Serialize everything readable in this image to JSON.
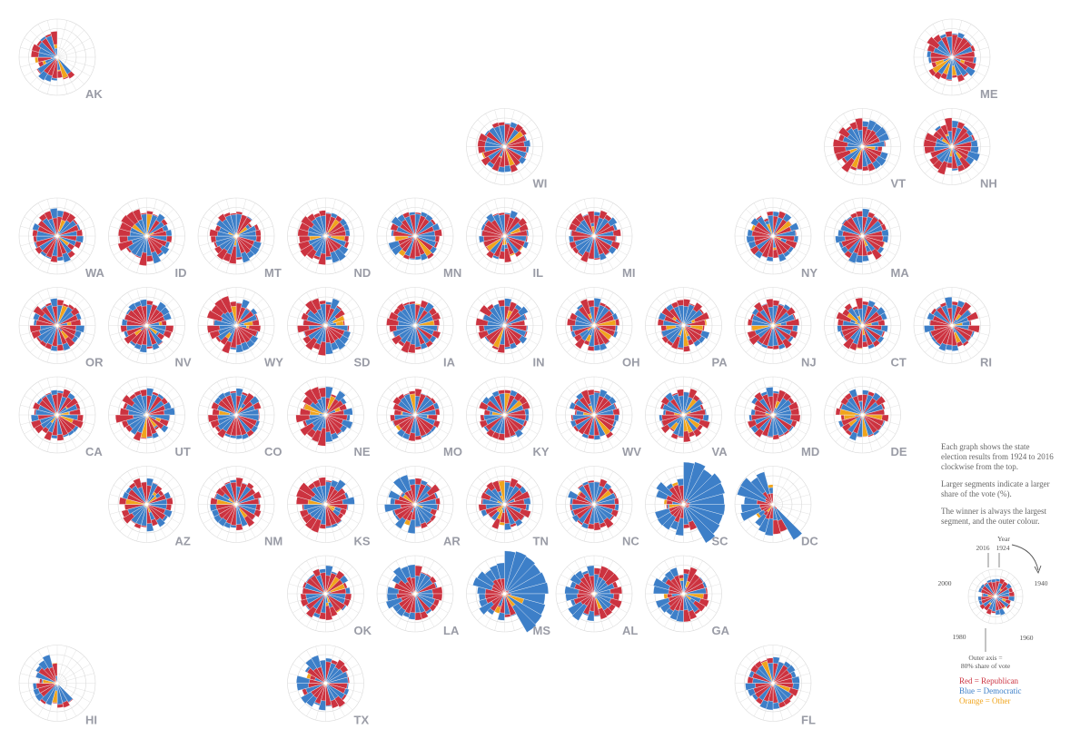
{
  "chart_data": {
    "type": "radial-bar-small-multiples",
    "years": [
      1924,
      1928,
      1932,
      1936,
      1940,
      1944,
      1948,
      1952,
      1956,
      1960,
      1964,
      1968,
      1972,
      1976,
      1980,
      1984,
      1988,
      1992,
      1996,
      2000,
      2004,
      2008,
      2012,
      2016
    ],
    "states": [
      {
        "abbr": "AK",
        "row": 0,
        "col": 0,
        "lean": 0,
        "partial": true
      },
      {
        "abbr": "ME",
        "row": 0,
        "col": 10,
        "lean": 0.2
      },
      {
        "abbr": "WI",
        "row": 1,
        "col": 5,
        "lean": 0
      },
      {
        "abbr": "VT",
        "row": 1,
        "col": 9,
        "lean": 0.25
      },
      {
        "abbr": "NH",
        "row": 1,
        "col": 10,
        "lean": 0.2
      },
      {
        "abbr": "WA",
        "row": 2,
        "col": 0,
        "lean": -0.05
      },
      {
        "abbr": "ID",
        "row": 2,
        "col": 1,
        "lean": 0.3
      },
      {
        "abbr": "MT",
        "row": 2,
        "col": 2,
        "lean": 0.2
      },
      {
        "abbr": "ND",
        "row": 2,
        "col": 3,
        "lean": 0.35
      },
      {
        "abbr": "MN",
        "row": 2,
        "col": 4,
        "lean": -0.1
      },
      {
        "abbr": "IL",
        "row": 2,
        "col": 5,
        "lean": 0
      },
      {
        "abbr": "MI",
        "row": 2,
        "col": 6,
        "lean": 0.05
      },
      {
        "abbr": "NY",
        "row": 2,
        "col": 8,
        "lean": -0.05
      },
      {
        "abbr": "MA",
        "row": 2,
        "col": 9,
        "lean": -0.1
      },
      {
        "abbr": "OR",
        "row": 3,
        "col": 0,
        "lean": 0.05
      },
      {
        "abbr": "NV",
        "row": 3,
        "col": 1,
        "lean": 0
      },
      {
        "abbr": "WY",
        "row": 3,
        "col": 2,
        "lean": 0.3
      },
      {
        "abbr": "SD",
        "row": 3,
        "col": 3,
        "lean": 0.3
      },
      {
        "abbr": "IA",
        "row": 3,
        "col": 4,
        "lean": 0.15
      },
      {
        "abbr": "IN",
        "row": 3,
        "col": 5,
        "lean": 0.2
      },
      {
        "abbr": "OH",
        "row": 3,
        "col": 6,
        "lean": 0.1
      },
      {
        "abbr": "PA",
        "row": 3,
        "col": 7,
        "lean": 0.05
      },
      {
        "abbr": "NJ",
        "row": 3,
        "col": 8,
        "lean": 0.05
      },
      {
        "abbr": "CT",
        "row": 3,
        "col": 9,
        "lean": 0.05
      },
      {
        "abbr": "RI",
        "row": 3,
        "col": 10,
        "lean": -0.15
      },
      {
        "abbr": "CA",
        "row": 4,
        "col": 0,
        "lean": 0
      },
      {
        "abbr": "UT",
        "row": 4,
        "col": 1,
        "lean": 0.35
      },
      {
        "abbr": "CO",
        "row": 4,
        "col": 2,
        "lean": 0.15
      },
      {
        "abbr": "NE",
        "row": 4,
        "col": 3,
        "lean": 0.35
      },
      {
        "abbr": "MO",
        "row": 4,
        "col": 4,
        "lean": 0
      },
      {
        "abbr": "KY",
        "row": 4,
        "col": 5,
        "lean": 0
      },
      {
        "abbr": "WV",
        "row": 4,
        "col": 6,
        "lean": -0.05
      },
      {
        "abbr": "VA",
        "row": 4,
        "col": 7,
        "lean": -0.1
      },
      {
        "abbr": "MD",
        "row": 4,
        "col": 8,
        "lean": -0.05
      },
      {
        "abbr": "DE",
        "row": 4,
        "col": 9,
        "lean": 0
      },
      {
        "abbr": "AZ",
        "row": 5,
        "col": 1,
        "lean": 0.1
      },
      {
        "abbr": "NM",
        "row": 5,
        "col": 2,
        "lean": 0
      },
      {
        "abbr": "KS",
        "row": 5,
        "col": 3,
        "lean": 0.35
      },
      {
        "abbr": "AR",
        "row": 5,
        "col": 4,
        "lean": -0.35
      },
      {
        "abbr": "TN",
        "row": 5,
        "col": 5,
        "lean": -0.05
      },
      {
        "abbr": "NC",
        "row": 5,
        "col": 6,
        "lean": -0.15
      },
      {
        "abbr": "SC",
        "row": 5,
        "col": 7,
        "lean": -0.55
      },
      {
        "abbr": "DC",
        "row": 5,
        "col": 8,
        "lean": -0.9,
        "partial": true
      },
      {
        "abbr": "OK",
        "row": 6,
        "col": 3,
        "lean": 0.1
      },
      {
        "abbr": "LA",
        "row": 6,
        "col": 4,
        "lean": -0.4
      },
      {
        "abbr": "MS",
        "row": 6,
        "col": 5,
        "lean": -0.55
      },
      {
        "abbr": "AL",
        "row": 6,
        "col": 6,
        "lean": -0.4
      },
      {
        "abbr": "GA",
        "row": 6,
        "col": 7,
        "lean": -0.4
      },
      {
        "abbr": "HI",
        "row": 7,
        "col": 0,
        "lean": -0.2,
        "partial": true
      },
      {
        "abbr": "TX",
        "row": 7,
        "col": 3,
        "lean": -0.2
      },
      {
        "abbr": "FL",
        "row": 7,
        "col": 8,
        "lean": -0.1
      }
    ]
  },
  "legend": {
    "p1": "Each graph shows the state election results from 1924 to 2016 clockwise from the top.",
    "p2": "Larger segments indicate a larger share of the vote (%).",
    "p3": "The winner is always the largest segment, and the outer colour.",
    "year_label": "Year",
    "y2016": "2016",
    "y1924": "1924",
    "y1940": "1940",
    "y1960": "1960",
    "y1980": "1980",
    "y2000": "2000",
    "outer_axis": "Outer axis =",
    "outer_axis2": "80% share of vote",
    "key_red": "Red = Republican",
    "key_blue": "Blue = Democratic",
    "key_orange": "Orange = Other"
  },
  "colors": {
    "republican": "#cc3340",
    "democratic": "#3d7fc8",
    "other": "#f0a41c",
    "grid": "#d9d9d9",
    "label": "#9a9ca6"
  }
}
